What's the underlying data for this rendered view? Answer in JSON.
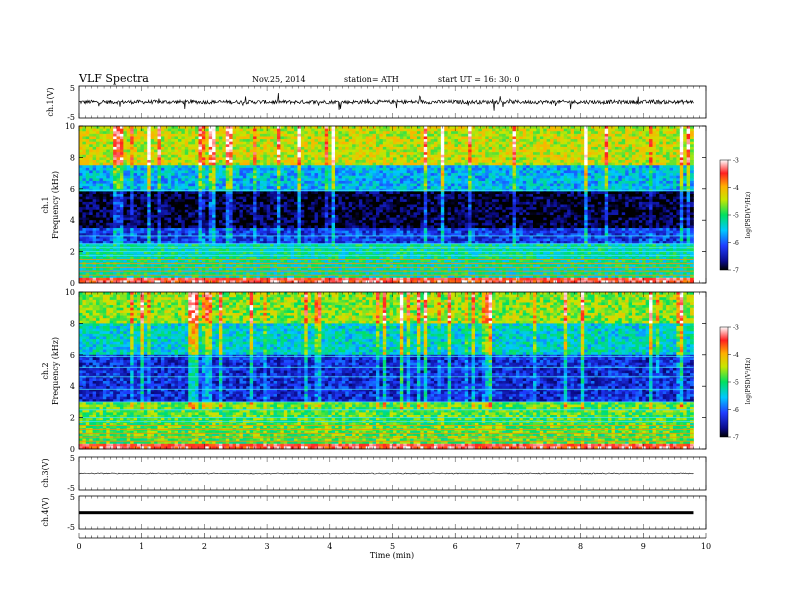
{
  "header": {
    "title": "VLF  Spectra",
    "date": "Nov.25, 2014",
    "station": "station= ATH",
    "start_time": "start  UT  =    16: 30: 0"
  },
  "chart_data": [
    {
      "type": "line",
      "panel": "ch1-waveform",
      "ylabel": "ch.1(V)",
      "ylim": [
        -5,
        5
      ],
      "yticks": [
        "5",
        "-5"
      ],
      "xlim": [
        0,
        10
      ],
      "trace_extent_min": [
        0,
        9.8
      ],
      "description_values": {
        "baseline_v": 0.0,
        "typical_amplitude_v": 0.6,
        "spike_amplitude_v": 2.5
      }
    },
    {
      "type": "heatmap",
      "panel": "ch1-spectrogram",
      "ylabel_line1": "ch.1",
      "ylabel_line2": "Frequency  (kHz)",
      "ylim": [
        0,
        10
      ],
      "yticks": [
        "0",
        "2",
        "4",
        "6",
        "8",
        "10"
      ],
      "xlim": [
        0,
        10
      ],
      "data_extent_min": [
        0,
        9.8
      ],
      "colorbar": {
        "label": "log(PSD(V²/Hz)",
        "range": [
          -7,
          -3
        ],
        "ticks": [
          "-3",
          "-4",
          "-5",
          "-6",
          "-7"
        ]
      },
      "horizontal_lines_khz": [
        0.25,
        0.5,
        0.75,
        1.0,
        1.25,
        1.5,
        1.75,
        2.0,
        2.25,
        2.5,
        3.0,
        5.9
      ],
      "level_profile": [
        {
          "band_khz": [
            0,
            0.3
          ],
          "log_psd": -3.4
        },
        {
          "band_khz": [
            0.3,
            2.5
          ],
          "log_psd": -5.2
        },
        {
          "band_khz": [
            2.5,
            3.5
          ],
          "log_psd": -6.2
        },
        {
          "band_khz": [
            3.5,
            5.8
          ],
          "log_psd": -6.9
        },
        {
          "band_khz": [
            5.8,
            7.5
          ],
          "log_psd": -5.6
        },
        {
          "band_khz": [
            7.5,
            10
          ],
          "log_psd": -4.4
        }
      ]
    },
    {
      "type": "heatmap",
      "panel": "ch2-spectrogram",
      "ylabel_line1": "ch.2",
      "ylabel_line2": "Frequency  (kHz)",
      "ylim": [
        0,
        10
      ],
      "yticks": [
        "0",
        "2",
        "4",
        "6",
        "8",
        "10"
      ],
      "xlim": [
        0,
        10
      ],
      "data_extent_min": [
        0,
        9.8
      ],
      "colorbar": {
        "label": "log(PSD(V²/Hz)",
        "range": [
          -7,
          -3
        ],
        "ticks": [
          "-3",
          "-4",
          "-5",
          "-6",
          "-7"
        ]
      },
      "horizontal_lines_khz": [
        0.25,
        0.5,
        0.75,
        1.0,
        1.25,
        1.5,
        1.75,
        2.0,
        2.5,
        3.0,
        3.8,
        4.6,
        5.2,
        5.9
      ],
      "level_profile": [
        {
          "band_khz": [
            0,
            0.3
          ],
          "log_psd": -3.4
        },
        {
          "band_khz": [
            0.3,
            3.0
          ],
          "log_psd": -4.8
        },
        {
          "band_khz": [
            3.0,
            6.0
          ],
          "log_psd": -6.3
        },
        {
          "band_khz": [
            6.0,
            8.0
          ],
          "log_psd": -5.4
        },
        {
          "band_khz": [
            8.0,
            10
          ],
          "log_psd": -4.6
        }
      ]
    },
    {
      "type": "line",
      "panel": "ch3-waveform",
      "ylabel": "ch.3(V)",
      "ylim": [
        -5,
        5
      ],
      "yticks": [
        "5",
        "-5"
      ],
      "xlim": [
        0,
        10
      ],
      "trace_extent_min": [
        0,
        9.8
      ],
      "description_values": {
        "baseline_v": 0.0,
        "typical_amplitude_v": 0.15
      }
    },
    {
      "type": "line",
      "panel": "ch4-waveform",
      "ylabel": "ch.4(V)",
      "ylim": [
        -5,
        5
      ],
      "yticks": [
        "5",
        "-5"
      ],
      "xlim": [
        0,
        10
      ],
      "trace_extent_min": [
        0,
        9.8
      ],
      "description_values": {
        "baseline_v": 0.0,
        "band_half_width_v": 0.4
      }
    }
  ],
  "xaxis": {
    "label": "Time  (min)",
    "ticks": [
      "0",
      "1",
      "2",
      "3",
      "4",
      "5",
      "6",
      "7",
      "8",
      "9",
      "10"
    ]
  }
}
